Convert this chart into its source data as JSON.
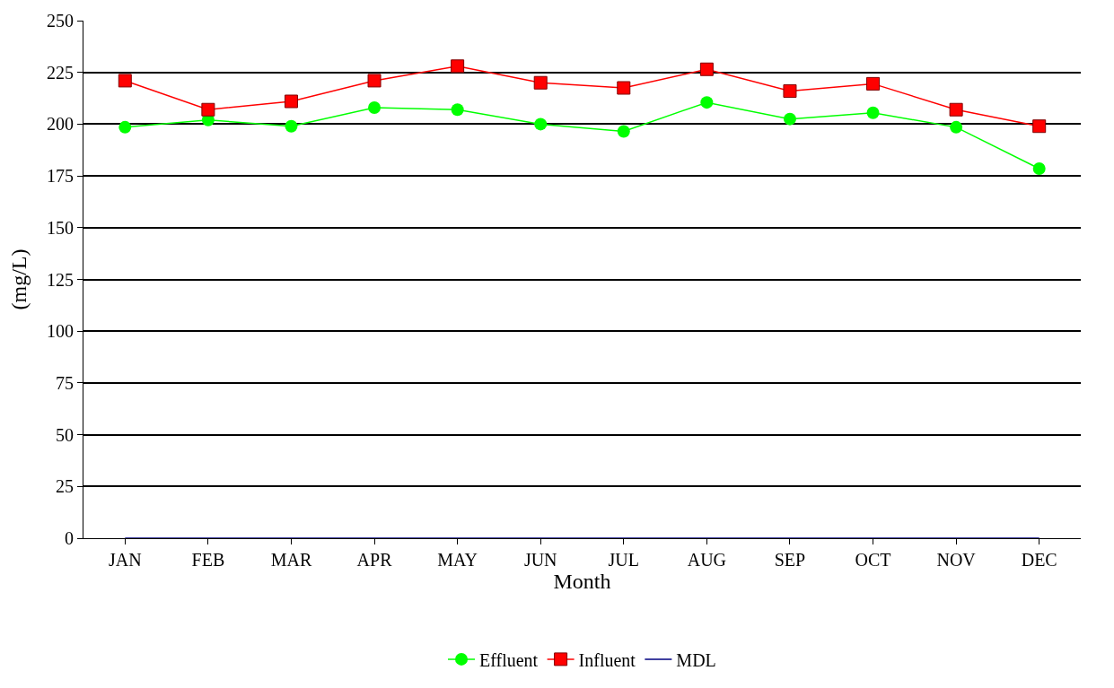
{
  "chart_data": {
    "type": "line",
    "xlabel": "Month",
    "ylabel": "(mg/L)",
    "categories": [
      "JAN",
      "FEB",
      "MAR",
      "APR",
      "MAY",
      "JUN",
      "JUL",
      "AUG",
      "SEP",
      "OCT",
      "NOV",
      "DEC"
    ],
    "series": [
      {
        "name": "Effluent",
        "color": "#00ff00",
        "marker": "circle",
        "values": [
          198.5,
          202,
          199,
          208,
          207,
          200,
          196.5,
          210.5,
          202.5,
          205.5,
          198.5,
          178.5
        ]
      },
      {
        "name": "Influent",
        "color": "#ff0000",
        "marker": "square",
        "values": [
          221,
          207,
          211,
          221,
          228,
          220,
          217.5,
          226.5,
          216,
          219.5,
          207,
          199
        ]
      },
      {
        "name": "MDL",
        "color": "#000080",
        "marker": "none",
        "values": [
          0,
          0,
          0,
          0,
          0,
          0,
          0,
          0,
          0,
          0,
          0,
          0
        ]
      }
    ],
    "ylim": [
      0,
      250
    ],
    "yticks": [
      0,
      25,
      50,
      75,
      100,
      125,
      150,
      175,
      200,
      225,
      250
    ],
    "grid": "y",
    "legend": "bottom",
    "line_style": "solid"
  }
}
